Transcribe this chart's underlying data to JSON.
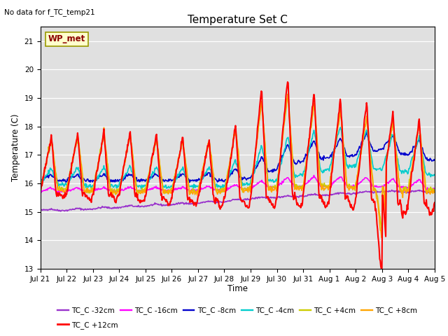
{
  "title": "Temperature Set C",
  "subtitle": "No data for f_TC_temp21",
  "xlabel": "Time",
  "ylabel": "Temperature (C)",
  "ylim": [
    13.0,
    21.5
  ],
  "yticks": [
    13.0,
    14.0,
    15.0,
    16.0,
    17.0,
    18.0,
    19.0,
    20.0,
    21.0
  ],
  "bg_color": "#e0e0e0",
  "fig_color": "#ffffff",
  "wp_met_label": "WP_met",
  "wp_met_box_color": "#ffffcc",
  "wp_met_text_color": "#8b0000",
  "legend_entries": [
    {
      "label": "TC_C -32cm",
      "color": "#9932cc",
      "lw": 1.2
    },
    {
      "label": "TC_C -16cm",
      "color": "#ff00ff",
      "lw": 1.2
    },
    {
      "label": "TC_C -8cm",
      "color": "#0000cd",
      "lw": 1.2
    },
    {
      "label": "TC_C -4cm",
      "color": "#00cccc",
      "lw": 1.2
    },
    {
      "label": "TC_C +4cm",
      "color": "#cccc00",
      "lw": 1.2
    },
    {
      "label": "TC_C +8cm",
      "color": "#ffa500",
      "lw": 1.2
    },
    {
      "label": "TC_C +12cm",
      "color": "#ff0000",
      "lw": 1.5
    }
  ],
  "n_days": 15,
  "date_labels": [
    "Jul 21",
    "Jul 22",
    "Jul 23",
    "Jul 24",
    "Jul 25",
    "Jul 26",
    "Jul 27",
    "Jul 28",
    "Jul 29",
    "Jul 30",
    "Jul 31",
    "Aug 1",
    "Aug 2",
    "Aug 3",
    "Aug 4",
    "Aug 5"
  ]
}
